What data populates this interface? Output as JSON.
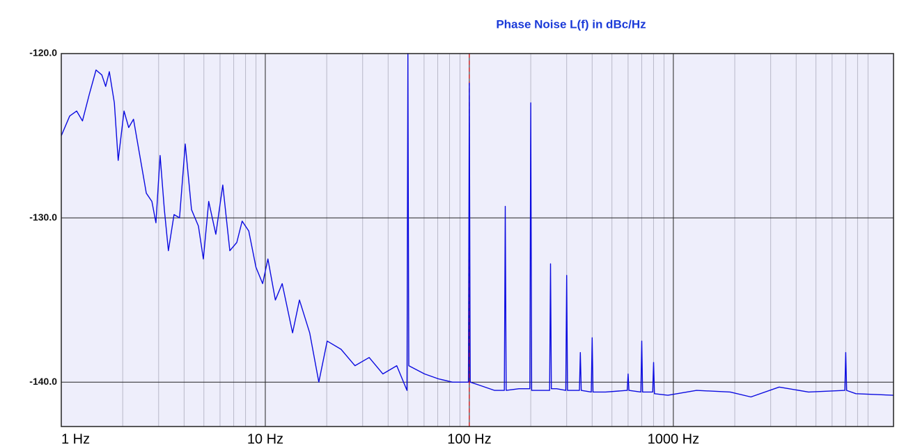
{
  "chart_data": {
    "type": "line",
    "title": "Phase Noise L(f) in dBc/Hz",
    "log_x": true,
    "grid": true,
    "minor_grid": true,
    "marker_x": 100,
    "marker_color": "#d01010",
    "x": [
      1,
      1.1,
      1.19,
      1.27,
      1.37,
      1.48,
      1.58,
      1.65,
      1.72,
      1.82,
      1.9,
      2.03,
      2.14,
      2.26,
      2.41,
      2.61,
      2.78,
      2.91,
      3.05,
      3.2,
      3.35,
      3.57,
      3.8,
      4.05,
      4.35,
      4.7,
      4.97,
      5.28,
      5.72,
      6.19,
      6.7,
      7.25,
      7.7,
      8.3,
      9,
      9.7,
      10.3,
      11.2,
      12.1,
      13.6,
      14.7,
      16.5,
      18.3,
      20.1,
      23.5,
      27.5,
      32.3,
      37.7,
      44.1,
      49.5,
      50,
      50.5,
      60.3,
      70.6,
      82.6,
      99,
      100,
      101,
      113,
      133,
      148.5,
      150,
      151.5,
      175,
      198,
      200,
      202,
      230,
      247.5,
      250,
      252.5,
      268,
      297,
      300,
      303,
      326,
      346.5,
      350,
      353.5,
      396,
      400,
      404,
      465,
      594,
      600,
      606,
      693,
      700,
      707,
      792,
      800,
      808,
      940,
      1300,
      1900,
      2400,
      3300,
      4600,
      6930,
      7000,
      7070,
      7850,
      12000
    ],
    "series": [
      {
        "color": "#0a0ae0",
        "values": [
          -125,
          -123.8,
          -123.5,
          -124.1,
          -122.5,
          -121,
          -121.3,
          -122,
          -121.1,
          -123,
          -126.5,
          -123.5,
          -124.5,
          -124,
          -126,
          -128.5,
          -129,
          -130.3,
          -126.2,
          -129.5,
          -132,
          -129.8,
          -130,
          -125.5,
          -129.5,
          -130.5,
          -132.5,
          -129,
          -131,
          -128,
          -132,
          -131.5,
          -130.2,
          -130.8,
          -133,
          -134,
          -132.5,
          -135,
          -134,
          -137,
          -135,
          -137,
          -140,
          -137.5,
          -138,
          -139,
          -138.5,
          -139.5,
          -139,
          -140.5,
          -120,
          -139,
          -139.5,
          -139.8,
          -140,
          -140,
          -121.8,
          -140,
          -140.2,
          -140.5,
          -140.5,
          -129.3,
          -140.5,
          -140.4,
          -140.4,
          -123,
          -140.5,
          -140.5,
          -140.5,
          -132.8,
          -140.4,
          -140.4,
          -140.5,
          -133.5,
          -140.5,
          -140.5,
          -140.5,
          -138.2,
          -140.5,
          -140.6,
          -137.3,
          -140.6,
          -140.6,
          -140.5,
          -139.5,
          -140.5,
          -140.6,
          -137.5,
          -140.6,
          -140.6,
          -138.8,
          -140.7,
          -140.8,
          -140.5,
          -140.6,
          -140.9,
          -140.3,
          -140.6,
          -140.5,
          -138.2,
          -140.5,
          -140.7,
          -140.8
        ]
      }
    ],
    "xlim": [
      1,
      12000
    ],
    "ylim": [
      -142.7,
      -120
    ],
    "xticks": [
      {
        "value": 1,
        "label": "1 Hz"
      },
      {
        "value": 10,
        "label": "10 Hz"
      },
      {
        "value": 100,
        "label": "100 Hz"
      },
      {
        "value": 1000,
        "label": "1000 Hz"
      }
    ],
    "yticks": [
      {
        "value": -120,
        "label": "-120.0"
      },
      {
        "value": -130,
        "label": "-130.0"
      },
      {
        "value": -140,
        "label": "-140.0"
      }
    ]
  }
}
